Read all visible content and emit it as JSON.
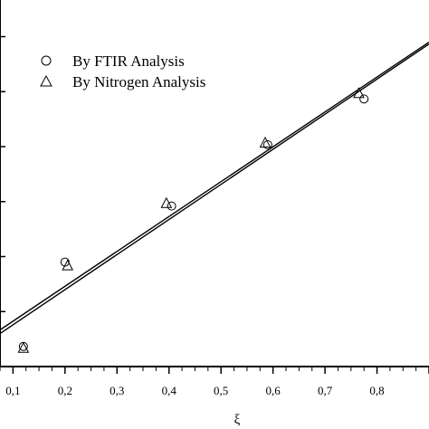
{
  "chart_data": {
    "type": "scatter",
    "xlabel": "ξ",
    "ylabel": "",
    "xlim": [
      0.075,
      0.9
    ],
    "ylim": [
      0.0,
      1.0
    ],
    "x_ticks": [
      "0,1",
      "0,2",
      "0,3",
      "0,4",
      "0,5",
      "0,6",
      "0,7",
      "0,8"
    ],
    "x_tick_values": [
      0.1,
      0.2,
      0.3,
      0.4,
      0.5,
      0.6,
      0.7,
      0.8
    ],
    "y_major_ticks": [
      0.0,
      0.15,
      0.3,
      0.45,
      0.6,
      0.75,
      0.9
    ],
    "legend_position": "top-left",
    "series": [
      {
        "name": "By FTIR Analysis",
        "marker": "circle",
        "x": [
          0.12,
          0.2,
          0.405,
          0.59,
          0.775
        ],
        "y": [
          0.055,
          0.285,
          0.438,
          0.605,
          0.73
        ]
      },
      {
        "name": "By Nitrogen Analysis",
        "marker": "triangle",
        "x": [
          0.12,
          0.205,
          0.395,
          0.585,
          0.765
        ],
        "y": [
          0.05,
          0.275,
          0.445,
          0.61,
          0.745
        ]
      }
    ],
    "fit_lines": [
      {
        "x": [
          0.075,
          0.9
        ],
        "y": [
          0.1,
          0.885
        ]
      },
      {
        "x": [
          0.075,
          0.9
        ],
        "y": [
          0.09,
          0.88
        ]
      }
    ]
  }
}
